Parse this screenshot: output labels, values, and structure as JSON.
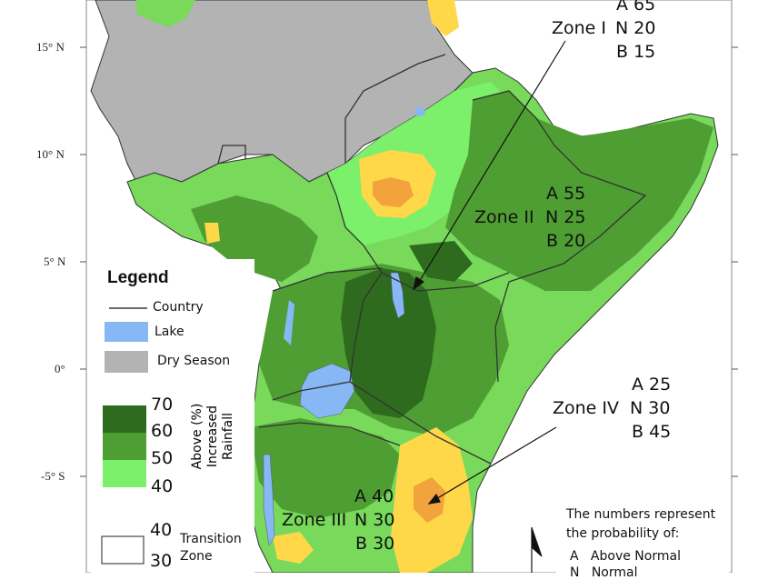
{
  "latitude_labels": [
    "15° N",
    "10° N",
    "5° N",
    "0°",
    "-5° S"
  ],
  "legend": {
    "title": "Legend",
    "country": "Country",
    "lake": "Lake",
    "dry_season": "Dry Season",
    "class_breaks": [
      "70",
      "60",
      "50",
      "40"
    ],
    "rotated_title_line1": "Above (%)",
    "rotated_title_line2": "Increased Rainfall",
    "transition_top": "40",
    "transition_bottom": "30",
    "transition_label_1": "Transition",
    "transition_label_2": "Zone"
  },
  "zones": {
    "zone1": {
      "name": "Zone I",
      "a": "A 65",
      "n": "N 20",
      "b": "B 15"
    },
    "zone2": {
      "name": "Zone II",
      "a": "A 55",
      "n": "N 25",
      "b": "B 20"
    },
    "zone3": {
      "name": "Zone III",
      "a": "A 40",
      "n": "N 30",
      "b": "B 30"
    },
    "zone4": {
      "name": "Zone IV",
      "a": "A 25",
      "n": "N 30",
      "b": "B 45"
    }
  },
  "note": {
    "line1": "The numbers represent",
    "line2": "the probability of:",
    "line3": "A   Above Normal",
    "line4": "N   Normal"
  },
  "colors": {
    "dark_green": "#2f6b1f",
    "mid_green": "#4f9e33",
    "light_green": "#78d95a",
    "bright_green": "#7cf06a",
    "yellow": "#ffd84a",
    "orange": "#f3a33c",
    "gray": "#b3b3b3",
    "lake": "#87b7f5"
  }
}
